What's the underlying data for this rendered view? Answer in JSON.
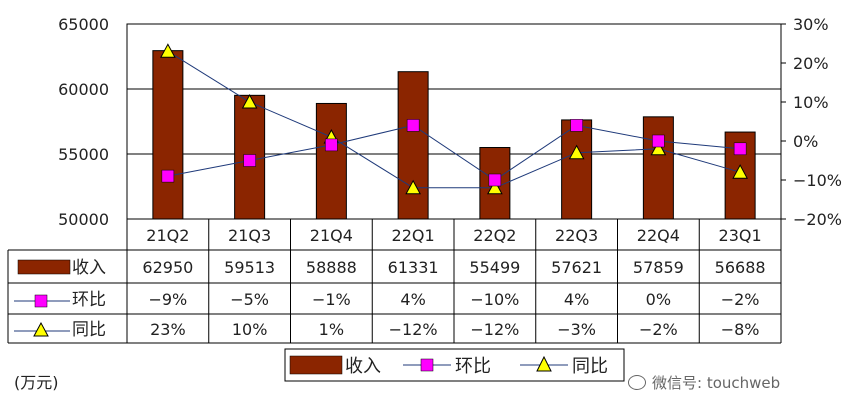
{
  "chart_data": {
    "type": "bar",
    "categories": [
      "21Q2",
      "21Q3",
      "21Q4",
      "22Q1",
      "22Q2",
      "22Q3",
      "22Q4",
      "23Q1"
    ],
    "series": [
      {
        "name": "收入",
        "type": "bar",
        "axis": "left",
        "color": "#8b2500",
        "values": [
          62950,
          59513,
          58888,
          61331,
          55499,
          57621,
          57859,
          56688
        ]
      },
      {
        "name": "环比",
        "type": "line",
        "axis": "right",
        "marker": "square",
        "color": "#ff00ff",
        "values": [
          -9,
          -5,
          -1,
          4,
          -10,
          4,
          0,
          -2
        ],
        "labels": [
          "-9%",
          "-5%",
          "-1%",
          "4%",
          "-10%",
          "4%",
          "0%",
          "-2%"
        ]
      },
      {
        "name": "同比",
        "type": "line",
        "axis": "right",
        "marker": "triangle",
        "color": "#ffff00",
        "values": [
          23,
          10,
          1,
          -12,
          -12,
          -3,
          -2,
          -8
        ],
        "labels": [
          "23%",
          "10%",
          "1%",
          "-12%",
          "-12%",
          "-3%",
          "-2%",
          "-8%"
        ]
      }
    ],
    "y_left": {
      "min": 50000,
      "max": 65000,
      "ticks": [
        50000,
        55000,
        60000,
        65000
      ]
    },
    "y_right": {
      "min": -20,
      "max": 30,
      "ticks": [
        -20,
        -10,
        0,
        10,
        20,
        30
      ],
      "tick_labels": [
        "-20%",
        "-10%",
        "0%",
        "10%",
        "20%",
        "30%"
      ]
    },
    "legend": "bottom",
    "grid": "horizontal",
    "data_table": true
  },
  "unit_label": "(万元)",
  "watermark": "微信号: touchweb"
}
